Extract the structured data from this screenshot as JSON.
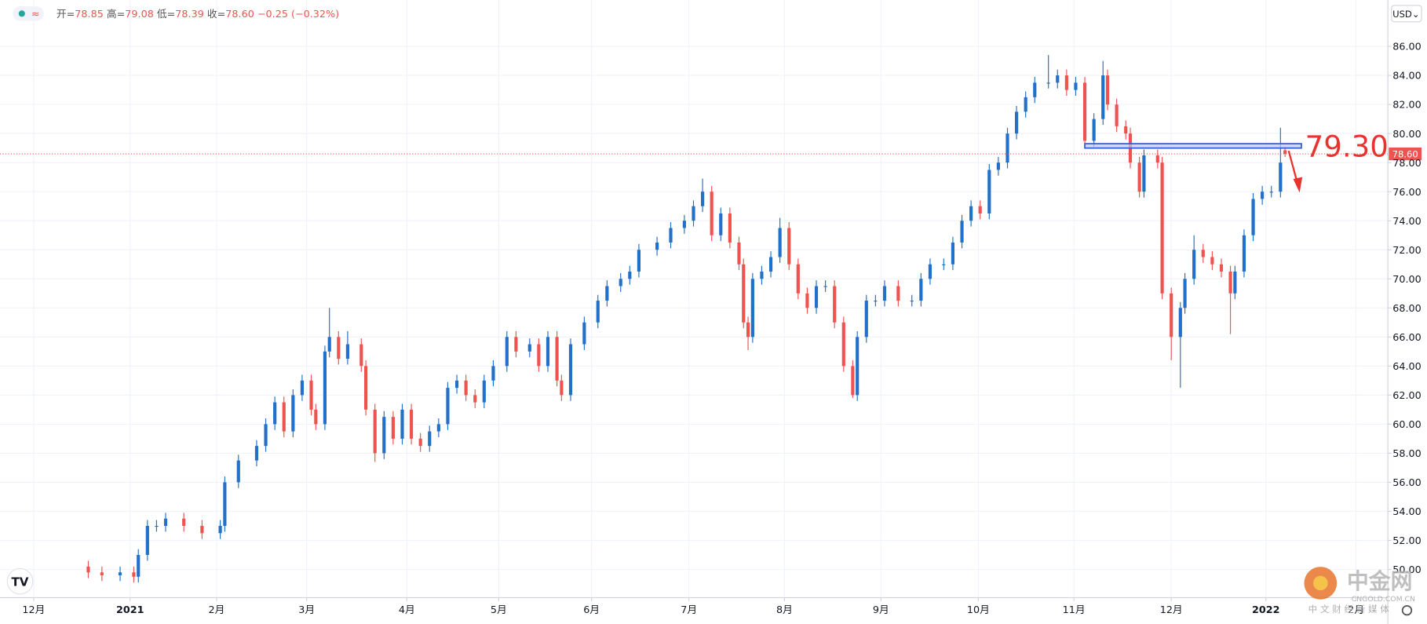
{
  "chart_data": {
    "type": "candlestick",
    "ohlc_header": [
      {
        "label": "开=",
        "value": "78.85"
      },
      {
        "label": "高=",
        "value": "79.08"
      },
      {
        "label": "低=",
        "value": "78.39"
      },
      {
        "label": "收=",
        "value": "78.60"
      }
    ],
    "change": "−0.25 (−0.32%)",
    "currency": "USD",
    "up_color": "#2270c9",
    "down_color": "#ef5350",
    "grid": true,
    "xlim": [
      -7.4,
      297.6
    ],
    "xticks": [
      {
        "value": 0,
        "label": "12月"
      },
      {
        "value": 21.2,
        "label": "2021"
      },
      {
        "value": 40.2,
        "label": "2月"
      },
      {
        "value": 60,
        "label": "3月"
      },
      {
        "value": 82,
        "label": "4月"
      },
      {
        "value": 102.2,
        "label": "5月"
      },
      {
        "value": 122.6,
        "label": "6月"
      },
      {
        "value": 144,
        "label": "7月"
      },
      {
        "value": 165,
        "label": "8月"
      },
      {
        "value": 186.2,
        "label": "9月"
      },
      {
        "value": 207.6,
        "label": "10月"
      },
      {
        "value": 228.6,
        "label": "11月"
      },
      {
        "value": 250,
        "label": "12月"
      },
      {
        "value": 270.8,
        "label": "2022"
      },
      {
        "value": 290.6,
        "label": "2月"
      }
    ],
    "ylim": [
      48.06,
      89.19
    ],
    "yticks": [
      {
        "value": 50,
        "label": "50.00"
      },
      {
        "value": 52,
        "label": "52.00"
      },
      {
        "value": 54,
        "label": "54.00"
      },
      {
        "value": 56,
        "label": "56.00"
      },
      {
        "value": 58,
        "label": "58.00"
      },
      {
        "value": 60,
        "label": "60.00"
      },
      {
        "value": 62,
        "label": "62.00"
      },
      {
        "value": 64,
        "label": "64.00"
      },
      {
        "value": 66,
        "label": "66.00"
      },
      {
        "value": 68,
        "label": "68.00"
      },
      {
        "value": 70,
        "label": "70.00"
      },
      {
        "value": 72,
        "label": "72.00"
      },
      {
        "value": 74,
        "label": "74.00"
      },
      {
        "value": 76,
        "label": "76.00"
      },
      {
        "value": 78,
        "label": "78.00"
      },
      {
        "value": 80,
        "label": "80.00"
      },
      {
        "value": 82,
        "label": "82.00"
      },
      {
        "value": 84,
        "label": "84.00"
      },
      {
        "value": 86,
        "label": "86.00"
      }
    ],
    "last_price": {
      "value": 78.6,
      "label": "78.60"
    },
    "zone": {
      "low": 79.0,
      "high": {
        "value": 79.3,
        "label": "79.30"
      },
      "x": [
        231,
        278.6
      ]
    },
    "x": [
      12,
      15,
      19,
      22,
      23,
      25,
      27,
      29,
      33,
      37,
      41,
      42,
      45,
      49,
      51,
      53,
      55,
      57,
      59,
      61,
      62,
      64,
      65,
      67,
      69,
      72,
      73,
      75,
      77,
      79,
      81,
      83,
      85,
      87,
      89,
      91,
      93,
      95,
      97,
      99,
      101,
      104,
      106,
      109,
      111,
      113,
      115,
      116,
      118,
      121,
      124,
      126,
      129,
      131,
      133,
      137,
      140,
      143,
      145,
      147,
      149,
      151,
      153,
      155,
      156,
      157,
      158,
      160,
      162,
      164,
      166,
      168,
      170,
      172,
      174,
      176,
      178,
      180,
      181,
      183,
      185,
      187,
      190,
      193,
      195,
      197,
      200,
      202,
      204,
      206,
      208,
      210,
      212,
      214,
      216,
      218,
      220,
      223,
      225,
      227,
      229,
      231,
      233,
      235,
      236,
      238,
      240,
      241,
      243,
      244,
      247,
      248,
      250,
      252,
      253,
      255,
      257,
      259,
      261,
      263,
      264,
      266,
      268,
      270,
      272,
      274,
      275
    ],
    "open": [
      50.2,
      49.8,
      49.6,
      49.8,
      49.5,
      51,
      53,
      53,
      53.5,
      53,
      52.5,
      53,
      56,
      57.5,
      58.5,
      60,
      61.5,
      59.5,
      62,
      63,
      61,
      60,
      65,
      66,
      64.5,
      65.5,
      64,
      61,
      58,
      60.5,
      59,
      61,
      59,
      58.5,
      59.5,
      60,
      62.5,
      63,
      62,
      61.5,
      63,
      64,
      66,
      65,
      65.5,
      64,
      66,
      63,
      62,
      65.5,
      67,
      68.5,
      69.5,
      70,
      70.5,
      72,
      72.5,
      73.5,
      74,
      75,
      76,
      73,
      74.5,
      72.5,
      71,
      67,
      66,
      70,
      70.5,
      71.5,
      73.5,
      71,
      69,
      68,
      69.5,
      69.5,
      67,
      64,
      62,
      66,
      68.5,
      68.5,
      69.5,
      68.5,
      68.5,
      70,
      71,
      71,
      72.5,
      74,
      75,
      74.5,
      77.5,
      78,
      80,
      81.5,
      82.5,
      83.5,
      83.5,
      84,
      83,
      83.5,
      79.5,
      81,
      84,
      82,
      80.5,
      80,
      78,
      76,
      78.5,
      78,
      69,
      66,
      68,
      70,
      72,
      71.5,
      71,
      70.5,
      69,
      70.5,
      73,
      75.5,
      76,
      76,
      78.85
    ],
    "high": [
      50.6,
      50.2,
      50.2,
      50.2,
      51.4,
      53.4,
      53.4,
      53.9,
      53.9,
      53.4,
      53.4,
      56.4,
      57.9,
      58.9,
      60.4,
      61.9,
      61.9,
      62.4,
      63.4,
      63.4,
      61.4,
      65.4,
      68,
      66.4,
      66.4,
      65.9,
      64.4,
      61.4,
      60.9,
      60.9,
      61.4,
      61.4,
      59.4,
      59.9,
      60.4,
      62.9,
      63.4,
      63.4,
      62.4,
      63.4,
      64.4,
      66.4,
      66.4,
      65.9,
      65.9,
      66.4,
      66.4,
      63.4,
      65.9,
      67.4,
      68.9,
      69.9,
      70.4,
      70.9,
      72.4,
      72.9,
      73.9,
      74.4,
      75.4,
      76.9,
      76.4,
      74.9,
      74.9,
      72.9,
      71.4,
      67.4,
      70.4,
      70.9,
      71.9,
      74.2,
      73.9,
      71.4,
      69.4,
      69.9,
      69.9,
      69.9,
      67.4,
      64.4,
      66.4,
      68.9,
      68.9,
      69.9,
      69.9,
      68.9,
      70.4,
      71.4,
      71.4,
      72.9,
      74.4,
      75.4,
      75.4,
      77.9,
      78.4,
      80.4,
      81.9,
      82.9,
      83.9,
      85.4,
      84.4,
      84.4,
      83.9,
      83.9,
      81.4,
      85,
      84.4,
      82.4,
      80.9,
      80.4,
      78.4,
      78.9,
      78.9,
      78.4,
      69.4,
      68.4,
      70.4,
      73,
      72.4,
      71.9,
      71.4,
      70.9,
      70.9,
      73.4,
      75.9,
      76.4,
      76.4,
      80.4,
      79.08
    ],
    "low": [
      49.4,
      49.2,
      49.2,
      49.1,
      49.1,
      50.6,
      52.6,
      52.6,
      52.6,
      52.1,
      52.1,
      52.6,
      55.6,
      57.1,
      58.1,
      59.6,
      59.1,
      59.1,
      61.6,
      60.6,
      59.6,
      59.6,
      64.6,
      64.1,
      64.1,
      63.6,
      60.6,
      57.4,
      57.6,
      58.6,
      58.6,
      58.6,
      58.1,
      58.1,
      59.1,
      59.6,
      62.1,
      61.6,
      61.1,
      61.1,
      62.6,
      63.6,
      64.6,
      64.6,
      63.6,
      63.6,
      62.6,
      61.6,
      61.6,
      65.1,
      66.6,
      68.1,
      69.1,
      69.6,
      70.1,
      71.6,
      72.1,
      73.1,
      73.6,
      74.6,
      72.6,
      72.6,
      72.1,
      70.6,
      66.6,
      65.1,
      65.6,
      69.6,
      70.1,
      71.1,
      70.6,
      68.6,
      67.6,
      67.6,
      69.1,
      66.6,
      63.6,
      61.8,
      61.6,
      65.6,
      68.1,
      68.1,
      68.1,
      68.1,
      68.1,
      69.6,
      70.6,
      70.6,
      72.1,
      73.6,
      74.1,
      74.1,
      77.1,
      77.6,
      79.6,
      81.1,
      82.1,
      83.1,
      83.1,
      82.6,
      82.6,
      79.1,
      79.1,
      80.6,
      81.6,
      80.1,
      79.6,
      77.6,
      75.6,
      75.6,
      77.6,
      68.6,
      64.4,
      62.5,
      67.6,
      69.6,
      71.1,
      70.6,
      70.1,
      66.2,
      68.6,
      70.1,
      72.6,
      75.1,
      75.6,
      75.6,
      78.39
    ],
    "close": [
      49.8,
      49.6,
      49.8,
      49.5,
      51,
      53,
      53,
      53.5,
      53,
      52.5,
      53,
      56,
      57.5,
      58.5,
      60,
      61.5,
      59.5,
      62,
      63,
      61,
      60,
      65,
      66,
      64.5,
      65.5,
      64,
      61,
      58,
      60.5,
      59,
      61,
      59,
      58.5,
      59.5,
      60,
      62.5,
      63,
      62,
      61.5,
      63,
      64,
      66,
      65,
      65.5,
      64,
      66,
      63,
      62,
      65.5,
      67,
      68.5,
      69.5,
      70,
      70.5,
      72,
      72.5,
      73.5,
      74,
      75,
      76,
      73,
      74.5,
      72.5,
      71,
      67,
      66,
      70,
      70.5,
      71.5,
      73.5,
      71,
      69,
      68,
      69.5,
      69.5,
      67,
      64,
      62,
      66,
      68.5,
      68.5,
      69.5,
      68.5,
      68.5,
      70,
      71,
      71,
      72.5,
      74,
      75,
      74.5,
      77.5,
      78,
      80,
      81.5,
      82.5,
      83.5,
      83.5,
      84,
      83,
      83.5,
      79.5,
      81,
      84,
      82,
      80.5,
      80,
      78,
      76,
      78.5,
      78,
      69,
      66,
      68,
      70,
      72,
      71.5,
      71,
      70.5,
      69,
      70.5,
      73,
      75.5,
      76,
      76,
      78,
      78.6
    ]
  },
  "watermark": {
    "brand": "中金网",
    "domain": "CNGOLD.COM.CN",
    "slogan": "中 文 财 经 新 媒 体"
  }
}
